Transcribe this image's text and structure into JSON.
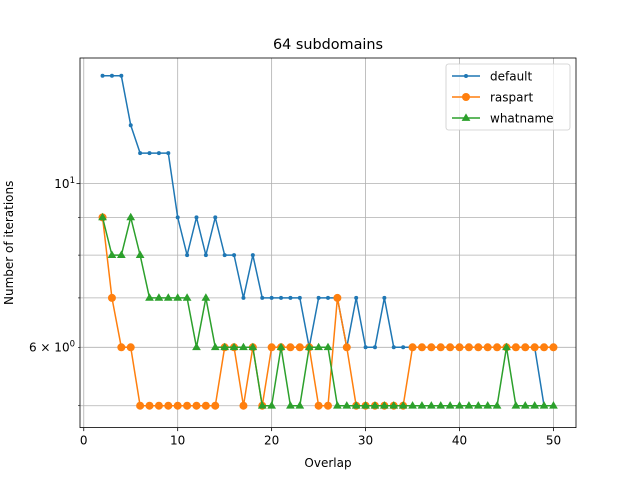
{
  "chart_data": {
    "type": "line",
    "title": "64 subdomains",
    "xlabel": "Overlap",
    "ylabel": "Number of iterations",
    "yscale": "log",
    "xlim": [
      -0.4,
      52.4
    ],
    "ylim": [
      4.67,
      14.8
    ],
    "grid": true,
    "legend_position": "top-right",
    "x_ticks": [
      0,
      10,
      20,
      30,
      40,
      50
    ],
    "y_major_ticks": [
      {
        "value": 10,
        "base": "10",
        "exp": "1"
      }
    ],
    "y_minor_ticks": [
      {
        "value": 6,
        "label": "6 × 10⁰"
      },
      {
        "value": 5
      },
      {
        "value": 7
      },
      {
        "value": 8
      },
      {
        "value": 9
      }
    ],
    "x": [
      2,
      3,
      4,
      5,
      6,
      7,
      8,
      9,
      10,
      11,
      12,
      13,
      14,
      15,
      16,
      17,
      18,
      19,
      20,
      21,
      22,
      23,
      24,
      25,
      26,
      27,
      28,
      29,
      30,
      31,
      32,
      33,
      34,
      35,
      36,
      37,
      38,
      39,
      40,
      41,
      42,
      43,
      44,
      45,
      46,
      47,
      48,
      49,
      50
    ],
    "series": [
      {
        "name": "default",
        "color": "#1f77b4",
        "marker": "point",
        "values": [
          14,
          14,
          14,
          12,
          11,
          11,
          11,
          11,
          9,
          8,
          9,
          8,
          9,
          8,
          8,
          7,
          8,
          7,
          7,
          7,
          7,
          7,
          6,
          7,
          7,
          7,
          6,
          7,
          6,
          6,
          7,
          6,
          6,
          6,
          6,
          6,
          6,
          6,
          6,
          6,
          6,
          6,
          6,
          6,
          6,
          6,
          6,
          5,
          5
        ]
      },
      {
        "name": "raspart",
        "color": "#ff7f0e",
        "marker": "circle",
        "values": [
          9,
          7,
          6,
          6,
          5,
          5,
          5,
          5,
          5,
          5,
          5,
          5,
          5,
          6,
          6,
          5,
          6,
          5,
          6,
          6,
          6,
          6,
          6,
          5,
          5,
          7,
          6,
          5,
          5,
          5,
          5,
          5,
          5,
          6,
          6,
          6,
          6,
          6,
          6,
          6,
          6,
          6,
          6,
          6,
          6,
          6,
          6,
          6,
          6
        ]
      },
      {
        "name": "whatname",
        "color": "#2ca02c",
        "marker": "triangle",
        "values": [
          9,
          8,
          8,
          9,
          8,
          7,
          7,
          7,
          7,
          7,
          6,
          7,
          6,
          6,
          6,
          6,
          6,
          5,
          5,
          6,
          5,
          5,
          6,
          6,
          6,
          5,
          5,
          5,
          5,
          5,
          5,
          5,
          5,
          5,
          5,
          5,
          5,
          5,
          5,
          5,
          5,
          5,
          5,
          6,
          5,
          5,
          5,
          5,
          5
        ]
      }
    ]
  }
}
